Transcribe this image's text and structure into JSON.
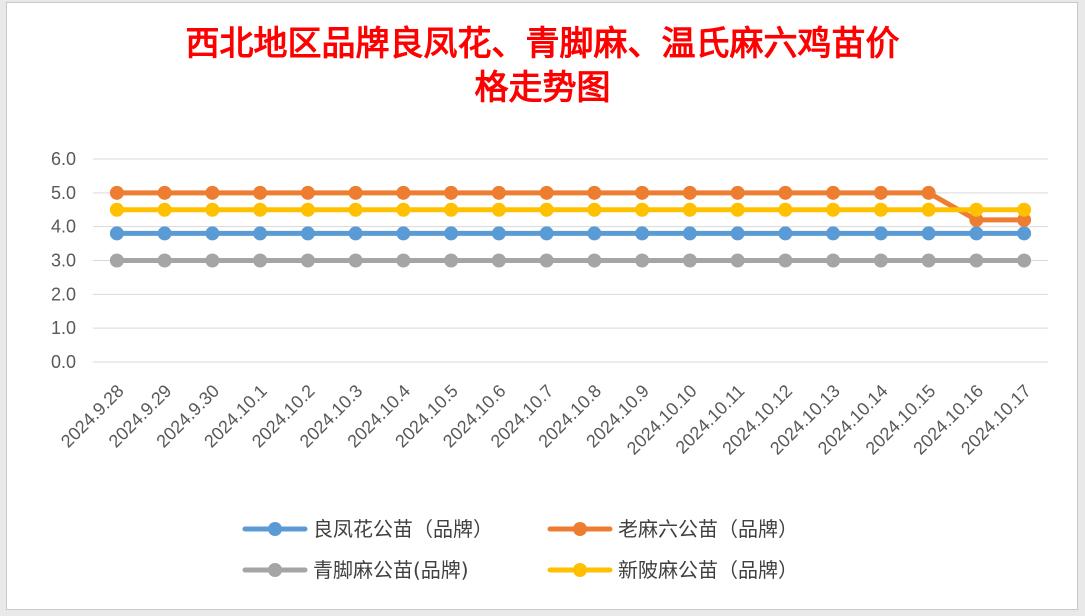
{
  "chart_data": {
    "type": "line",
    "title_line1": "西北地区品牌良凤花、青脚麻、温氏麻六鸡苗价",
    "title_line2": "格走势图",
    "categories": [
      "2024.9.28",
      "2024.9.29",
      "2024.9.30",
      "2024.10.1",
      "2024.10.2",
      "2024.10.3",
      "2024.10.4",
      "2024.10.5",
      "2024.10.6",
      "2024.10.7",
      "2024.10.8",
      "2024.10.9",
      "2024.10.10",
      "2024.10.11",
      "2024.10.12",
      "2024.10.13",
      "2024.10.14",
      "2024.10.15",
      "2024.10.16",
      "2024.10.17"
    ],
    "ylim": [
      0,
      6
    ],
    "yticks": [
      "0.0",
      "1.0",
      "2.0",
      "3.0",
      "4.0",
      "5.0",
      "6.0"
    ],
    "grid": true,
    "legend_position": "bottom",
    "series": [
      {
        "name": "良凤花公苗（品牌）",
        "color": "#5b9bd5",
        "values": [
          3.8,
          3.8,
          3.8,
          3.8,
          3.8,
          3.8,
          3.8,
          3.8,
          3.8,
          3.8,
          3.8,
          3.8,
          3.8,
          3.8,
          3.8,
          3.8,
          3.8,
          3.8,
          3.8,
          3.8
        ]
      },
      {
        "name": "老麻六公苗（品牌）",
        "color": "#ed7d31",
        "values": [
          5.0,
          5.0,
          5.0,
          5.0,
          5.0,
          5.0,
          5.0,
          5.0,
          5.0,
          5.0,
          5.0,
          5.0,
          5.0,
          5.0,
          5.0,
          5.0,
          5.0,
          5.0,
          4.2,
          4.2
        ]
      },
      {
        "name": "青脚麻公苗(品牌)",
        "color": "#a5a5a5",
        "values": [
          3.0,
          3.0,
          3.0,
          3.0,
          3.0,
          3.0,
          3.0,
          3.0,
          3.0,
          3.0,
          3.0,
          3.0,
          3.0,
          3.0,
          3.0,
          3.0,
          3.0,
          3.0,
          3.0,
          3.0
        ]
      },
      {
        "name": "新陂麻公苗（品牌）",
        "color": "#ffc000",
        "values": [
          4.5,
          4.5,
          4.5,
          4.5,
          4.5,
          4.5,
          4.5,
          4.5,
          4.5,
          4.5,
          4.5,
          4.5,
          4.5,
          4.5,
          4.5,
          4.5,
          4.5,
          4.5,
          4.5,
          4.5
        ]
      }
    ]
  }
}
